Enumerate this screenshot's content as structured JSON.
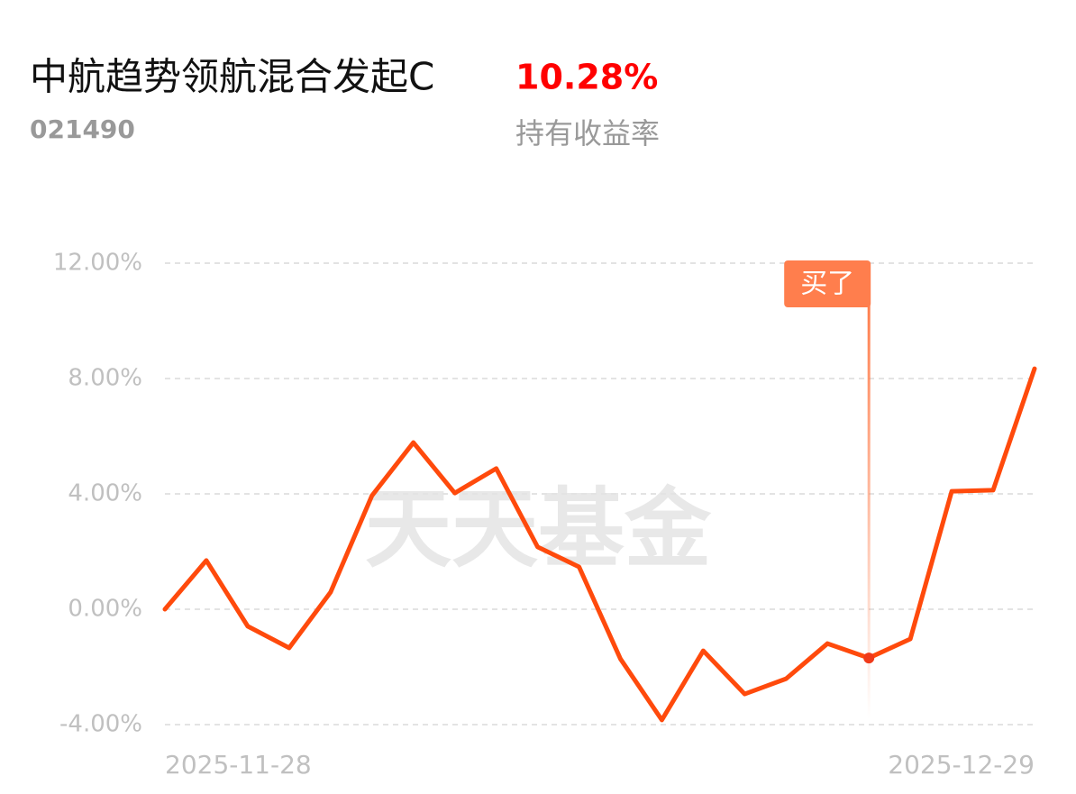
{
  "header": {
    "fund_name": "中航趋势领航混合发起C",
    "fund_code": "021490",
    "return_value": "10.28%",
    "return_label": "持有收益率"
  },
  "chart_data": {
    "type": "line",
    "watermark": "天天基金",
    "categories": [
      "2025-11-28",
      null,
      null,
      null,
      null,
      null,
      null,
      null,
      null,
      null,
      null,
      null,
      null,
      null,
      null,
      null,
      null,
      null,
      null,
      null,
      null,
      "2025-12-29"
    ],
    "series": [
      {
        "color": "#ff4a0c",
        "values": [
          0.0,
          1.69,
          -0.59,
          -1.34,
          0.59,
          3.94,
          5.78,
          4.03,
          4.88,
          2.16,
          1.47,
          -1.72,
          -3.84,
          -1.44,
          -2.94,
          -2.41,
          -1.19,
          -1.69,
          -1.03,
          4.09,
          4.13,
          8.34
        ]
      }
    ],
    "ylim": [
      -4,
      12
    ],
    "yticks": [
      {
        "value": -4,
        "label": "-4.00%"
      },
      {
        "value": 0,
        "label": "0.00%"
      },
      {
        "value": 4,
        "label": "4.00%"
      },
      {
        "value": 8,
        "label": "8.00%"
      },
      {
        "value": 12,
        "label": "12.00%"
      }
    ],
    "grid": true,
    "buy_marker": {
      "text": "买了",
      "index": 17,
      "color": "#ff7e4d"
    }
  }
}
